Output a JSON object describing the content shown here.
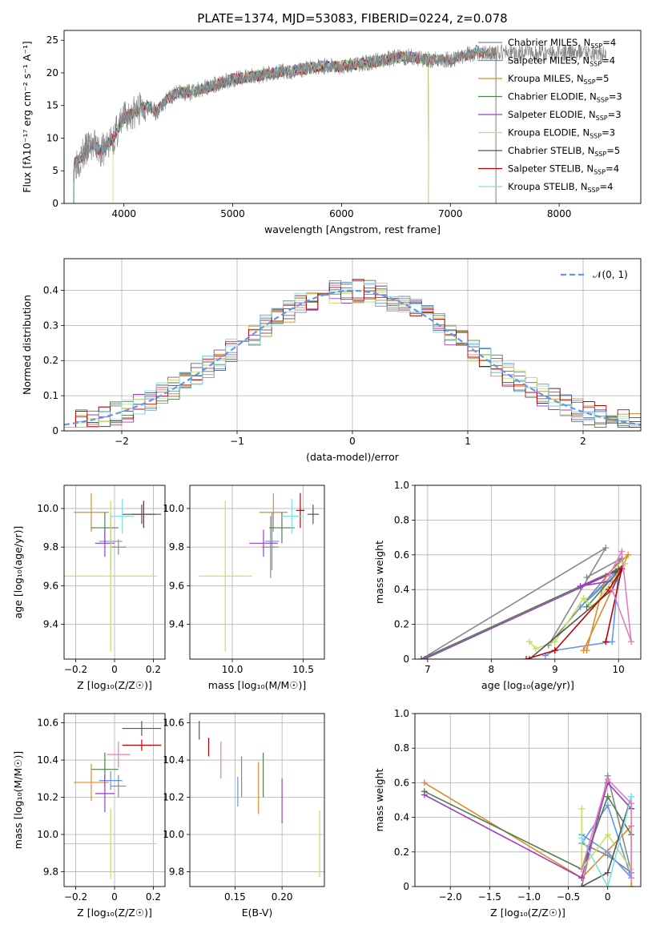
{
  "title": "PLATE=1374, MJD=53083, FIBERID=0224, z=0.078",
  "colors": {
    "series": [
      "#888888",
      "#6495ed",
      "#e08a2a",
      "#4f7f4f",
      "#9a3fbf",
      "#c4e060",
      "#555555",
      "#c00000",
      "#80dfe8"
    ],
    "dashed": "#6495ed",
    "extra": [
      "#e07fbf"
    ]
  },
  "legend_spectrum": [
    {
      "base": "Chabrier MILES, N",
      "sub": "SSP",
      "tail": "=4"
    },
    {
      "base": "Salpeter MILES, N",
      "sub": "SSP",
      "tail": "=4"
    },
    {
      "base": "Kroupa MILES, N",
      "sub": "SSP",
      "tail": "=5"
    },
    {
      "base": "Chabrier ELODIE, N",
      "sub": "SSP",
      "tail": "=3"
    },
    {
      "base": "Salpeter ELODIE, N",
      "sub": "SSP",
      "tail": "=3"
    },
    {
      "base": "Kroupa ELODIE, N",
      "sub": "SSP",
      "tail": "=3"
    },
    {
      "base": "Chabrier STELIB, N",
      "sub": "SSP",
      "tail": "=5"
    },
    {
      "base": "Salpeter STELIB, N",
      "sub": "SSP",
      "tail": "=4"
    },
    {
      "base": "Kroupa STELIB, N",
      "sub": "SSP",
      "tail": "=4"
    }
  ],
  "legend_residual": "𝒩(0, 1)",
  "chart_data": [
    {
      "id": "spectrum",
      "type": "line",
      "xlabel": "wavelength [Angstrom, rest frame]",
      "ylabel": "Flux [fλ10⁻¹⁷ erg cm⁻² s⁻¹ A⁻¹]",
      "xlim": [
        3450,
        8750
      ],
      "ylim": [
        0,
        26.5
      ],
      "xticks": [
        4000,
        5000,
        6000,
        7000,
        8000
      ],
      "yticks": [
        0,
        5,
        10,
        15,
        20,
        25
      ],
      "x": [
        3540,
        3600,
        3700,
        3800,
        3900,
        4000,
        4100,
        4200,
        4300,
        4400,
        4500,
        4600,
        4800,
        5000,
        5200,
        5400,
        5600,
        5800,
        6000,
        6200,
        6400,
        6600,
        6800,
        7000,
        7200,
        7400
      ],
      "flux": [
        6,
        7,
        9,
        8,
        10,
        13,
        14,
        15,
        14,
        16,
        17,
        17,
        18,
        19,
        19.5,
        20,
        20.5,
        21,
        21,
        21.5,
        22,
        22.5,
        22,
        22,
        23,
        23
      ],
      "data_x_range": [
        3540,
        8430
      ],
      "series": [
        {
          "name": "Chabrier MILES",
          "x_range": [
            3540,
            8430
          ],
          "style": "data"
        },
        {
          "name": "Salpeter MILES",
          "x_range": [
            3540,
            7420
          ]
        },
        {
          "name": "Kroupa MILES",
          "x_range": [
            3540,
            7420
          ]
        },
        {
          "name": "Chabrier ELODIE",
          "x_range": [
            3540,
            6800
          ]
        },
        {
          "name": "Salpeter ELODIE",
          "x_range": [
            3540,
            6800
          ]
        },
        {
          "name": "Kroupa ELODIE",
          "x_range": [
            3900,
            6800
          ]
        },
        {
          "name": "Chabrier STELIB",
          "x_range": [
            3540,
            7420
          ]
        },
        {
          "name": "Salpeter STELIB",
          "x_range": [
            3540,
            7420
          ]
        },
        {
          "name": "Kroupa STELIB",
          "x_range": [
            3540,
            7420
          ]
        }
      ],
      "grid": false,
      "legend": "right"
    },
    {
      "id": "residuals",
      "type": "line",
      "xlabel": "(data-model)/error",
      "ylabel": "Normed distribution",
      "xlim": [
        -2.5,
        2.5
      ],
      "ylim": [
        0,
        0.49
      ],
      "xticks": [
        -2,
        -1,
        0,
        1,
        2
      ],
      "yticks": [
        0.0,
        0.1,
        0.2,
        0.3,
        0.4
      ],
      "gaussian": {
        "mean": 0,
        "sigma": 1
      },
      "grid": true,
      "legend": "top-right"
    },
    {
      "id": "age_vs_Z",
      "type": "scatter",
      "xlabel": "Z [log₁₀(Z/Z☉)]",
      "ylabel": "age  [log₁₀(age/yr)]",
      "xlim": [
        -0.26,
        0.26
      ],
      "ylim": [
        9.22,
        10.12
      ],
      "xticks": [
        -0.2,
        0.0,
        0.2
      ],
      "yticks": [
        9.4,
        9.6,
        9.8,
        10.0
      ],
      "points": [
        {
          "x": 0.15,
          "y": 9.97,
          "xerr": 0.06,
          "yerr": 0.07,
          "c": 8
        },
        {
          "x": 0.02,
          "y": 9.8,
          "xerr": 0.04,
          "yerr": 0.04,
          "c": 1
        },
        {
          "x": -0.02,
          "y": 9.83,
          "xerr": 0.06,
          "yerr": 0.15,
          "c": 2
        },
        {
          "x": -0.12,
          "y": 9.98,
          "xerr": 0.09,
          "yerr": 0.1,
          "c": 3
        },
        {
          "x": -0.05,
          "y": 9.9,
          "xerr": 0.07,
          "yerr": 0.08,
          "c": 4
        },
        {
          "x": -0.05,
          "y": 9.82,
          "xerr": 0.05,
          "yerr": 0.07,
          "c": 5
        },
        {
          "x": -0.02,
          "y": 9.65,
          "xerr": 0.24,
          "yerr": 0.39,
          "c": 6
        },
        {
          "x": 0.14,
          "y": 9.97,
          "xerr": 0.1,
          "yerr": 0.05,
          "c": 7
        },
        {
          "x": 0.04,
          "y": 9.96,
          "xerr": 0.06,
          "yerr": 0.09,
          "c": 9
        }
      ],
      "grid": true
    },
    {
      "id": "age_vs_mass",
      "type": "scatter",
      "xlabel": "mass [log₁₀(M/M☉)]",
      "ylabel": "",
      "xlim": [
        9.7,
        10.65
      ],
      "ylim": [
        9.22,
        10.12
      ],
      "xticks": [
        10.0,
        10.5
      ],
      "yticks": [
        9.4,
        9.6,
        9.8,
        10.0
      ],
      "points": [
        {
          "x": 10.48,
          "y": 9.99,
          "xerr": 0.03,
          "yerr": 0.09,
          "c": 8
        },
        {
          "x": 10.27,
          "y": 9.8,
          "xerr": 0.06,
          "yerr": 0.16,
          "c": 1
        },
        {
          "x": 10.28,
          "y": 9.83,
          "xerr": 0.05,
          "yerr": 0.15,
          "c": 2
        },
        {
          "x": 10.29,
          "y": 9.98,
          "xerr": 0.1,
          "yerr": 0.1,
          "c": 3
        },
        {
          "x": 10.35,
          "y": 9.9,
          "xerr": 0.09,
          "yerr": 0.08,
          "c": 4
        },
        {
          "x": 10.22,
          "y": 9.82,
          "xerr": 0.1,
          "yerr": 0.07,
          "c": 5
        },
        {
          "x": 9.95,
          "y": 9.65,
          "xerr": 0.19,
          "yerr": 0.39,
          "c": 6
        },
        {
          "x": 10.57,
          "y": 9.97,
          "xerr": 0.04,
          "yerr": 0.05,
          "c": 7
        },
        {
          "x": 10.42,
          "y": 9.96,
          "xerr": 0.07,
          "yerr": 0.09,
          "c": 9
        }
      ],
      "grid": true
    },
    {
      "id": "mass_weight_vs_age",
      "type": "line",
      "xlabel": "age  [log₁₀(age/yr)]",
      "ylabel": "mass weight",
      "xlim": [
        6.8,
        10.35
      ],
      "ylim": [
        0,
        1.0
      ],
      "xticks": [
        7,
        8,
        9,
        10
      ],
      "yticks": [
        0.0,
        0.2,
        0.4,
        0.6,
        0.8,
        1.0
      ],
      "series": [
        {
          "c": 1,
          "x": [
            6.9,
            9.8,
            8.9,
            10.05,
            9.5
          ],
          "y": [
            0.0,
            0.64,
            0.08,
            0.58,
            0.47
          ]
        },
        {
          "c": 2,
          "x": [
            8.85,
            9.0,
            9.9,
            10.0,
            9.4,
            9.95
          ],
          "y": [
            0.02,
            0.05,
            0.1,
            0.5,
            0.3,
            0.5
          ]
        },
        {
          "c": 3,
          "x": [
            9.5,
            9.8,
            10.15,
            9.45
          ],
          "y": [
            0.05,
            0.48,
            0.6,
            0.05
          ]
        },
        {
          "c": 4,
          "x": [
            6.9,
            10.0,
            10.1,
            9.5
          ],
          "y": [
            0.0,
            0.52,
            0.55,
            0.3
          ]
        },
        {
          "c": 5,
          "x": [
            6.95,
            10.05,
            9.4,
            9.9
          ],
          "y": [
            0.0,
            0.52,
            0.42,
            0.45
          ]
        },
        {
          "c": 6,
          "x": [
            8.6,
            8.7,
            9.0,
            9.45,
            9.6,
            10.1
          ],
          "y": [
            0.1,
            0.06,
            0.1,
            0.35,
            0.3,
            0.55
          ]
        },
        {
          "c": 7,
          "x": [
            8.6,
            9.9,
            10.05,
            9.95
          ],
          "y": [
            0.0,
            0.4,
            0.52,
            0.5
          ]
        },
        {
          "c": 8,
          "x": [
            8.55,
            9.0,
            9.85,
            10.05,
            9.8
          ],
          "y": [
            0.0,
            0.05,
            0.4,
            0.52,
            0.1
          ]
        },
        {
          "c": 10,
          "x": [
            9.85,
            10.05,
            10.2,
            9.9
          ],
          "y": [
            0.48,
            0.62,
            0.1,
            0.4
          ]
        }
      ],
      "grid": true
    },
    {
      "id": "mass_vs_Z",
      "type": "scatter",
      "xlabel": "Z [log₁₀(Z/Z☉)]",
      "ylabel": "mass [log₁₀(M/M☉)]",
      "xlim": [
        -0.26,
        0.26
      ],
      "ylim": [
        9.72,
        10.65
      ],
      "xticks": [
        -0.2,
        0.0,
        0.2
      ],
      "yticks": [
        9.8,
        10.0,
        10.2,
        10.4,
        10.6
      ],
      "points": [
        {
          "x": 0.14,
          "y": 10.57,
          "xerr": 0.1,
          "yerr": 0.04,
          "c": 7
        },
        {
          "x": 0.14,
          "y": 10.48,
          "xerr": 0.1,
          "yerr": 0.03,
          "c": 8
        },
        {
          "x": 0.02,
          "y": 10.43,
          "xerr": 0.06,
          "yerr": 0.07,
          "c": 10
        },
        {
          "x": -0.05,
          "y": 10.35,
          "xerr": 0.07,
          "yerr": 0.09,
          "c": 4
        },
        {
          "x": -0.12,
          "y": 10.28,
          "xerr": 0.09,
          "yerr": 0.1,
          "c": 3
        },
        {
          "x": -0.02,
          "y": 10.29,
          "xerr": 0.06,
          "yerr": 0.05,
          "c": 2
        },
        {
          "x": 0.02,
          "y": 10.26,
          "xerr": 0.04,
          "yerr": 0.06,
          "c": 1
        },
        {
          "x": -0.05,
          "y": 10.22,
          "xerr": 0.05,
          "yerr": 0.1,
          "c": 5
        },
        {
          "x": -0.02,
          "y": 9.95,
          "xerr": 0.24,
          "yerr": 0.19,
          "c": 6
        }
      ],
      "grid": true
    },
    {
      "id": "mass_vs_EBV",
      "type": "scatter",
      "xlabel": "E(B-V)",
      "ylabel": "",
      "xlim": [
        0.102,
        0.245
      ],
      "ylim": [
        9.72,
        10.65
      ],
      "xticks": [
        0.15,
        0.2
      ],
      "yticks": [
        9.8,
        10.0,
        10.2,
        10.4,
        10.6
      ],
      "points": [
        {
          "x": 0.112,
          "y": 10.56,
          "yerr": 0.05,
          "c": 7
        },
        {
          "x": 0.122,
          "y": 10.47,
          "yerr": 0.05,
          "c": 8
        },
        {
          "x": 0.135,
          "y": 10.4,
          "yerr": 0.1,
          "c": 10
        },
        {
          "x": 0.153,
          "y": 10.23,
          "yerr": 0.08,
          "c": 2
        },
        {
          "x": 0.157,
          "y": 10.31,
          "yerr": 0.11,
          "c": 1
        },
        {
          "x": 0.175,
          "y": 10.25,
          "yerr": 0.14,
          "c": 3
        },
        {
          "x": 0.18,
          "y": 10.32,
          "yerr": 0.12,
          "c": 4
        },
        {
          "x": 0.2,
          "y": 10.18,
          "yerr": 0.12,
          "c": 5
        },
        {
          "x": 0.24,
          "y": 9.95,
          "yerr": 0.18,
          "c": 6
        }
      ],
      "grid": true
    },
    {
      "id": "mass_weight_vs_Z",
      "type": "line",
      "xlabel": "Z [log₁₀(Z/Z☉)]",
      "ylabel": "mass weight",
      "xlim": [
        -2.45,
        0.42
      ],
      "ylim": [
        0,
        1.0
      ],
      "xticks": [
        -2.0,
        -1.5,
        -1.0,
        -0.5,
        0.0
      ],
      "yticks": [
        0.0,
        0.2,
        0.4,
        0.6,
        0.8,
        1.0
      ],
      "series": [
        {
          "c": 1,
          "x": [
            -0.33,
            0.0,
            0.3,
            0.0,
            -0.33
          ],
          "y": [
            0.0,
            0.64,
            0.08,
            0.18,
            0.25
          ]
        },
        {
          "c": 2,
          "x": [
            -0.33,
            0.0,
            0.3,
            0.0,
            -0.33
          ],
          "y": [
            0.25,
            0.47,
            0.05,
            0.2,
            0.3
          ]
        },
        {
          "c": 3,
          "x": [
            -2.33,
            -0.33,
            0.3,
            0.3
          ],
          "y": [
            0.6,
            0.05,
            0.35,
            0.0
          ]
        },
        {
          "c": 4,
          "x": [
            -2.33,
            -0.33,
            0.0,
            0.3
          ],
          "y": [
            0.55,
            0.1,
            0.52,
            0.3
          ]
        },
        {
          "c": 5,
          "x": [
            -2.33,
            -0.33,
            0.0,
            0.3
          ],
          "y": [
            0.53,
            0.05,
            0.6,
            0.45
          ]
        },
        {
          "c": 6,
          "x": [
            -0.33,
            -0.33,
            0.0,
            0.3,
            0.3
          ],
          "y": [
            0.45,
            0.1,
            0.3,
            0.1,
            0.05
          ]
        },
        {
          "c": 7,
          "x": [
            -0.33,
            0.0,
            0.3,
            0.3
          ],
          "y": [
            0.0,
            0.08,
            0.52,
            0.45
          ]
        },
        {
          "c": 9,
          "x": [
            -0.33,
            0.0,
            0.3,
            0.3
          ],
          "y": [
            0.28,
            0.0,
            0.52,
            0.05
          ]
        },
        {
          "c": 10,
          "x": [
            -0.33,
            0.0,
            0.3,
            0.3
          ],
          "y": [
            0.1,
            0.62,
            0.48,
            0.05
          ]
        }
      ],
      "grid": true
    }
  ]
}
